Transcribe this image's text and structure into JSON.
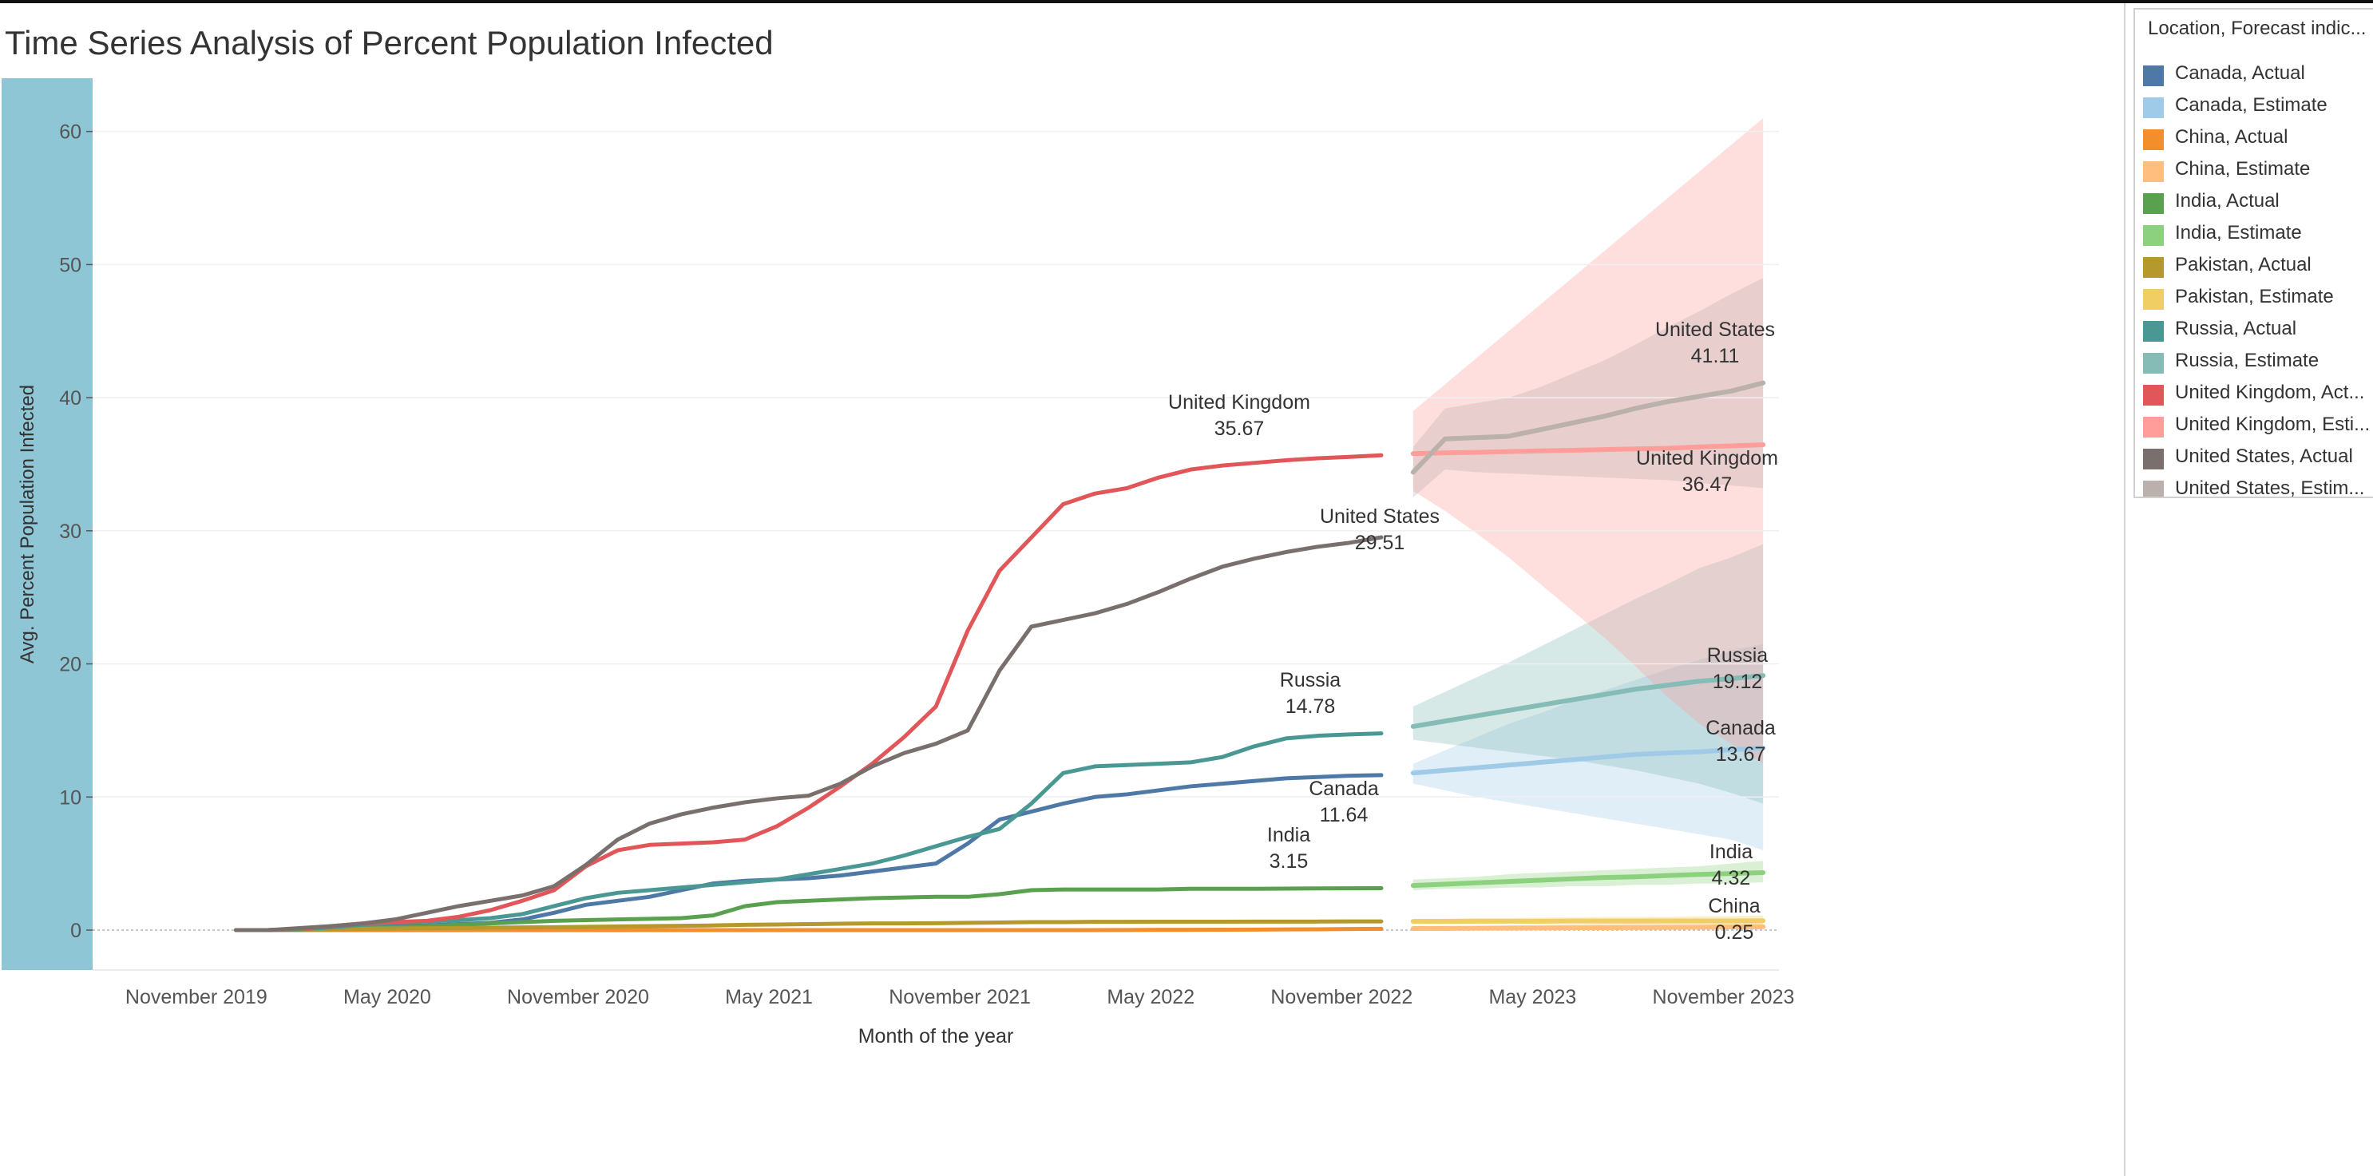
{
  "title": "Time Series Analysis of Percent Population Infected",
  "legend": {
    "title": "Location, Forecast indic...",
    "items": [
      {
        "label": "Canada, Actual",
        "color": "#4e79a7"
      },
      {
        "label": "Canada, Estimate",
        "color": "#a0cbe8"
      },
      {
        "label": "China, Actual",
        "color": "#f28e2b"
      },
      {
        "label": "China, Estimate",
        "color": "#ffbe7d"
      },
      {
        "label": "India, Actual",
        "color": "#59a14f"
      },
      {
        "label": "India, Estimate",
        "color": "#8cd17d"
      },
      {
        "label": "Pakistan, Actual",
        "color": "#b6992d"
      },
      {
        "label": "Pakistan, Estimate",
        "color": "#f1ce63"
      },
      {
        "label": "Russia, Actual",
        "color": "#499894"
      },
      {
        "label": "Russia, Estimate",
        "color": "#86bcb6"
      },
      {
        "label": "United Kingdom, Act...",
        "color": "#e15759"
      },
      {
        "label": "United Kingdom, Esti...",
        "color": "#ff9d9a"
      },
      {
        "label": "United States, Actual",
        "color": "#79706e"
      },
      {
        "label": "United States, Estim...",
        "color": "#bab0ac"
      }
    ]
  },
  "chart_data": {
    "type": "line",
    "title": "Time Series Analysis of Percent Population Infected",
    "xlabel": "Month of the year",
    "ylabel": "Avg. Percent Population Infected",
    "ylim": [
      -3,
      64
    ],
    "x_range": [
      "2019-10",
      "2024-02"
    ],
    "y_ticks": [
      0,
      10,
      20,
      30,
      40,
      50,
      60
    ],
    "x_ticks": [
      {
        "date": "2019-11",
        "label": "November 2019"
      },
      {
        "date": "2020-05",
        "label": "May 2020"
      },
      {
        "date": "2020-11",
        "label": "November 2020"
      },
      {
        "date": "2021-05",
        "label": "May 2021"
      },
      {
        "date": "2021-11",
        "label": "November 2021"
      },
      {
        "date": "2022-05",
        "label": "May 2022"
      },
      {
        "date": "2022-11",
        "label": "November 2022"
      },
      {
        "date": "2023-05",
        "label": "May 2023"
      },
      {
        "date": "2023-11",
        "label": "November 2023"
      }
    ],
    "grid": true,
    "legend_position": "right",
    "y_axis_band_color": "#8fc6d6",
    "actual_months": [
      "2020-01",
      "2020-02",
      "2020-03",
      "2020-04",
      "2020-05",
      "2020-06",
      "2020-07",
      "2020-08",
      "2020-09",
      "2020-10",
      "2020-11",
      "2020-12",
      "2021-01",
      "2021-02",
      "2021-03",
      "2021-04",
      "2021-05",
      "2021-06",
      "2021-07",
      "2021-08",
      "2021-09",
      "2021-10",
      "2021-11",
      "2021-12",
      "2022-01",
      "2022-02",
      "2022-03",
      "2022-04",
      "2022-05",
      "2022-06",
      "2022-07",
      "2022-08",
      "2022-09",
      "2022-10",
      "2022-11",
      "2022-12",
      "2023-01"
    ],
    "estimate_months": [
      "2023-02",
      "2023-03",
      "2023-04",
      "2023-05",
      "2023-06",
      "2023-07",
      "2023-08",
      "2023-09",
      "2023-10",
      "2023-11",
      "2023-12",
      "2024-01"
    ],
    "series": [
      {
        "name": "Canada, Actual",
        "color": "#4e79a7",
        "values": [
          0,
          0,
          0.05,
          0.1,
          0.2,
          0.3,
          0.35,
          0.45,
          0.55,
          0.8,
          1.3,
          1.9,
          2.2,
          2.5,
          3.0,
          3.5,
          3.7,
          3.8,
          3.9,
          4.1,
          4.4,
          4.7,
          5.0,
          6.5,
          8.3,
          8.9,
          9.5,
          10.0,
          10.2,
          10.5,
          10.8,
          11.0,
          11.2,
          11.4,
          11.5,
          11.6,
          11.64
        ]
      },
      {
        "name": "Canada, Estimate",
        "color": "#a0cbe8",
        "values": [
          11.8,
          12.0,
          12.2,
          12.4,
          12.6,
          12.8,
          13.0,
          13.2,
          13.3,
          13.4,
          13.55,
          13.67
        ],
        "band_lower": [
          11.0,
          10.5,
          10.0,
          9.6,
          9.2,
          8.8,
          8.4,
          8.0,
          7.6,
          7.2,
          6.8,
          6.0
        ],
        "band_upper": [
          12.5,
          13.5,
          14.5,
          15.5,
          16.3,
          17.2,
          18.0,
          18.8,
          19.6,
          20.3,
          21.0,
          21.5
        ]
      },
      {
        "name": "China, Actual",
        "color": "#f28e2b",
        "values": [
          0,
          0,
          0,
          0,
          0,
          0,
          0,
          0,
          0,
          0,
          0,
          0,
          0,
          0,
          0,
          0,
          0,
          0,
          0,
          0,
          0,
          0,
          0,
          0,
          0,
          0,
          0,
          0,
          0.01,
          0.02,
          0.02,
          0.03,
          0.04,
          0.05,
          0.06,
          0.08,
          0.1
        ]
      },
      {
        "name": "China, Estimate",
        "color": "#ffbe7d",
        "values": [
          0.12,
          0.13,
          0.14,
          0.15,
          0.16,
          0.17,
          0.18,
          0.19,
          0.2,
          0.22,
          0.24,
          0.25
        ],
        "band_lower": [
          0.05,
          0.05,
          0.05,
          0.05,
          0.05,
          0.05,
          0.05,
          0.05,
          0.05,
          0.05,
          0.05,
          0.05
        ],
        "band_upper": [
          0.2,
          0.25,
          0.3,
          0.35,
          0.4,
          0.45,
          0.5,
          0.55,
          0.6,
          0.65,
          0.7,
          0.75
        ]
      },
      {
        "name": "India, Actual",
        "color": "#59a14f",
        "values": [
          0,
          0,
          0.05,
          0.1,
          0.15,
          0.2,
          0.3,
          0.4,
          0.5,
          0.6,
          0.7,
          0.75,
          0.8,
          0.85,
          0.9,
          1.1,
          1.8,
          2.1,
          2.2,
          2.3,
          2.4,
          2.45,
          2.5,
          2.5,
          2.7,
          3.0,
          3.05,
          3.05,
          3.05,
          3.05,
          3.1,
          3.1,
          3.1,
          3.12,
          3.13,
          3.14,
          3.15
        ]
      },
      {
        "name": "India, Estimate",
        "color": "#8cd17d",
        "values": [
          3.35,
          3.45,
          3.55,
          3.65,
          3.75,
          3.85,
          3.95,
          4.0,
          4.1,
          4.18,
          4.25,
          4.32
        ],
        "band_lower": [
          3.0,
          3.1,
          3.1,
          3.2,
          3.2,
          3.3,
          3.3,
          3.4,
          3.4,
          3.5,
          3.5,
          3.6
        ],
        "band_upper": [
          3.8,
          3.9,
          4.0,
          4.2,
          4.3,
          4.4,
          4.5,
          4.6,
          4.7,
          4.8,
          5.0,
          5.2
        ]
      },
      {
        "name": "Pakistan, Actual",
        "color": "#b6992d",
        "values": [
          0,
          0,
          0,
          0.05,
          0.1,
          0.12,
          0.14,
          0.16,
          0.18,
          0.2,
          0.22,
          0.25,
          0.28,
          0.3,
          0.32,
          0.35,
          0.4,
          0.42,
          0.45,
          0.48,
          0.5,
          0.5,
          0.52,
          0.55,
          0.57,
          0.6,
          0.6,
          0.62,
          0.62,
          0.63,
          0.63,
          0.63,
          0.64,
          0.64,
          0.64,
          0.65,
          0.65
        ]
      },
      {
        "name": "Pakistan, Estimate",
        "color": "#f1ce63",
        "values": [
          0.66,
          0.66,
          0.67,
          0.67,
          0.67,
          0.68,
          0.68,
          0.68,
          0.69,
          0.69,
          0.69,
          0.7
        ],
        "band_lower": [
          0.55,
          0.55,
          0.55,
          0.55,
          0.55,
          0.55,
          0.55,
          0.55,
          0.55,
          0.55,
          0.55,
          0.55
        ],
        "band_upper": [
          0.8,
          0.85,
          0.9,
          0.9,
          0.95,
          0.95,
          1.0,
          1.0,
          1.0,
          1.05,
          1.05,
          1.1
        ]
      },
      {
        "name": "Russia, Actual",
        "color": "#499894",
        "values": [
          0,
          0,
          0.05,
          0.2,
          0.4,
          0.55,
          0.65,
          0.75,
          0.9,
          1.2,
          1.8,
          2.4,
          2.8,
          3.0,
          3.2,
          3.4,
          3.6,
          3.8,
          4.2,
          4.6,
          5.0,
          5.6,
          6.3,
          7.0,
          7.6,
          9.5,
          11.8,
          12.3,
          12.4,
          12.5,
          12.6,
          13.0,
          13.8,
          14.4,
          14.6,
          14.7,
          14.78
        ]
      },
      {
        "name": "Russia, Estimate",
        "color": "#86bcb6",
        "values": [
          15.3,
          15.7,
          16.1,
          16.5,
          16.9,
          17.3,
          17.7,
          18.1,
          18.4,
          18.7,
          18.9,
          19.12
        ],
        "band_lower": [
          14.3,
          14.0,
          13.7,
          13.4,
          13.1,
          12.8,
          12.4,
          12.0,
          11.5,
          11.0,
          10.3,
          9.5
        ],
        "band_upper": [
          16.8,
          17.9,
          19.0,
          20.1,
          21.3,
          22.5,
          23.7,
          24.9,
          26.0,
          27.2,
          28.0,
          29.0
        ]
      },
      {
        "name": "United Kingdom, Act...",
        "color": "#e15759",
        "values": [
          0,
          0,
          0.1,
          0.3,
          0.5,
          0.6,
          0.7,
          1.0,
          1.5,
          2.2,
          3.0,
          4.8,
          6.0,
          6.4,
          6.5,
          6.6,
          6.8,
          7.8,
          9.2,
          10.8,
          12.5,
          14.5,
          16.8,
          22.5,
          27.0,
          29.5,
          32.0,
          32.8,
          33.2,
          34.0,
          34.6,
          34.9,
          35.1,
          35.3,
          35.45,
          35.55,
          35.67
        ]
      },
      {
        "name": "United Kingdom, Esti...",
        "color": "#ff9d9a",
        "values": [
          35.8,
          35.85,
          35.9,
          35.95,
          36.0,
          36.05,
          36.1,
          36.15,
          36.2,
          36.3,
          36.38,
          36.47
        ],
        "band_lower": [
          33.0,
          31.5,
          29.8,
          28.0,
          26.0,
          24.0,
          22.0,
          19.8,
          17.5,
          15.5,
          14.0,
          12.5
        ],
        "band_upper": [
          39.0,
          41.0,
          43.0,
          45.0,
          47.0,
          49.0,
          51.0,
          53.0,
          55.0,
          57.0,
          59.0,
          61.0
        ]
      },
      {
        "name": "United States, Actual",
        "color": "#79706e",
        "values": [
          0,
          0,
          0.15,
          0.3,
          0.5,
          0.8,
          1.3,
          1.8,
          2.2,
          2.6,
          3.3,
          4.9,
          6.8,
          8.0,
          8.7,
          9.2,
          9.6,
          9.9,
          10.1,
          11.0,
          12.3,
          13.3,
          14.0,
          15.0,
          19.5,
          22.8,
          23.3,
          23.8,
          24.5,
          25.4,
          26.4,
          27.3,
          27.9,
          28.4,
          28.8,
          29.1,
          29.51
        ]
      },
      {
        "name": "United States, Estim...",
        "color": "#bab0ac",
        "values": [
          34.4,
          36.9,
          37.0,
          37.1,
          37.6,
          38.1,
          38.6,
          39.2,
          39.7,
          40.1,
          40.5,
          41.11
        ],
        "band_lower": [
          32.5,
          34.6,
          34.4,
          34.3,
          34.2,
          34.1,
          34.0,
          33.9,
          33.8,
          33.6,
          33.4,
          33.2
        ],
        "band_upper": [
          36.3,
          39.2,
          39.6,
          40.0,
          40.8,
          41.8,
          42.8,
          44.0,
          45.3,
          46.5,
          47.8,
          49.0
        ]
      }
    ],
    "data_labels": [
      {
        "name": "United Kingdom",
        "value": "35.67"
      },
      {
        "name": "United States",
        "value": "29.51"
      },
      {
        "name": "Russia",
        "value": "14.78"
      },
      {
        "name": "Canada",
        "value": "11.64"
      },
      {
        "name": "India",
        "value": "3.15"
      },
      {
        "name": "United States",
        "value": "41.11"
      },
      {
        "name": "United Kingdom",
        "value": "36.47"
      },
      {
        "name": "Russia",
        "value": "19.12"
      },
      {
        "name": "Canada",
        "value": "13.67"
      },
      {
        "name": "India",
        "value": "4.32"
      },
      {
        "name": "China",
        "value": "0.25"
      }
    ]
  }
}
